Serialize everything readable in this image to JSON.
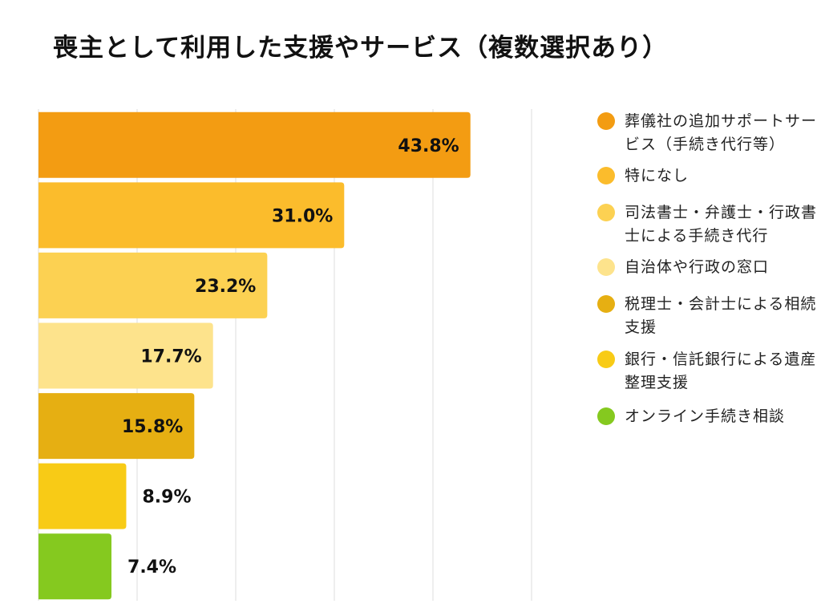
{
  "chart_data": {
    "type": "bar",
    "orientation": "horizontal",
    "title": "喪主として利用した支援やサービス（複数選択あり）",
    "categories": [
      "葬儀社の追加サポートサービス（手続き代行等）",
      "特になし",
      "司法書士・弁護士・行政書士による手続き代行",
      "自治体や行政の窓口",
      "税理士・会計士による相続支援",
      "銀行・信託銀行による遺産整理支援",
      "オンライン手続き相談"
    ],
    "values": [
      43.8,
      31.0,
      23.2,
      17.7,
      15.8,
      8.9,
      7.4
    ],
    "data_labels": [
      "43.8%",
      "31.0%",
      "23.2%",
      "17.7%",
      "15.8%",
      "8.9%",
      "7.4%"
    ],
    "colors": [
      "#F39C12",
      "#FBBC2C",
      "#FCD152",
      "#FDE38C",
      "#E6AF12",
      "#F8CB16",
      "#85C91F"
    ],
    "xlim": [
      0,
      50
    ],
    "grid": true,
    "legend": "right"
  }
}
